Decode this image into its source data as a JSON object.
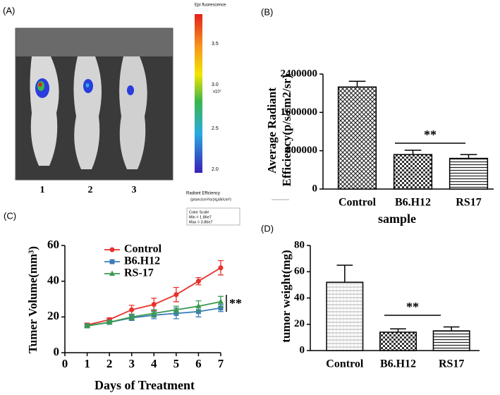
{
  "panel_a": {
    "label": "(A)",
    "mouse_labels": [
      "1",
      "2",
      "3"
    ],
    "colorbar_title": "Epi fluorescence",
    "colorbar_ticks": [
      "3.5",
      "3.0",
      "2.5",
      "2.0"
    ],
    "colorbar_unit": "x10⁷",
    "scale_title": "Radiant Efficiency",
    "scale_unit": "(p/sec/cm²/sr)/(µW/cm²)",
    "color_scale": [
      "Color Scale",
      "Min = 1.86e7",
      "Max = 3.86e7"
    ]
  },
  "chart_data": [
    {
      "type": "bar",
      "label": "(B)",
      "ylabel": [
        "Average Radiant",
        "Efficiency(p/s/cm2/sr)"
      ],
      "xlabel": "sample",
      "categories": [
        "Control",
        "B6.H12",
        "RS17"
      ],
      "values": [
        2130000,
        720000,
        640000
      ],
      "errors": [
        120000,
        90000,
        80000
      ],
      "bar_fill": [
        "crosshatch",
        "checker",
        "hlines"
      ],
      "ylim": [
        0,
        2400000
      ],
      "yticks": [
        0,
        800000,
        1600000,
        2400000
      ],
      "significance": "**"
    },
    {
      "type": "line",
      "label": "(C)",
      "ylabel": "Tumer Volume(mm³)",
      "xlabel": "Days of Treatment",
      "x": [
        1,
        2,
        3,
        4,
        5,
        6,
        7
      ],
      "xlim": [
        0,
        7
      ],
      "xticks": [
        0,
        1,
        2,
        3,
        4,
        5,
        6,
        7
      ],
      "ylim": [
        0,
        60
      ],
      "yticks": [
        0,
        20,
        40,
        60
      ],
      "series": [
        {
          "name": "Control",
          "color": "#e8322d",
          "marker": "circle",
          "values": [
            15.5,
            18.5,
            24,
            27,
            32.5,
            40,
            47.5
          ],
          "errors": [
            1,
            1,
            2.5,
            3.5,
            4,
            2,
            4
          ]
        },
        {
          "name": "B6.H12",
          "color": "#3d7db8",
          "marker": "square",
          "values": [
            15,
            17,
            19.5,
            21,
            22,
            23,
            25
          ],
          "errors": [
            1,
            1,
            1.5,
            2,
            3,
            3,
            2
          ]
        },
        {
          "name": "RS-17",
          "color": "#3a9a4e",
          "marker": "triangle",
          "values": [
            15,
            17,
            20,
            22,
            24,
            26,
            28.5
          ],
          "errors": [
            1,
            1,
            1.5,
            2,
            2,
            3,
            3
          ]
        }
      ],
      "significance": "**"
    },
    {
      "type": "bar",
      "label": "(D)",
      "ylabel": "tumor weight(mg)",
      "categories": [
        "Control",
        "B6.H12",
        "RS17"
      ],
      "values": [
        52,
        14,
        15
      ],
      "errors": [
        13,
        2.5,
        3
      ],
      "bar_fill": [
        "lightgrid",
        "checker",
        "hlines"
      ],
      "ylim": [
        0,
        80
      ],
      "yticks": [
        0,
        20,
        40,
        60,
        80
      ],
      "significance": "**"
    }
  ]
}
